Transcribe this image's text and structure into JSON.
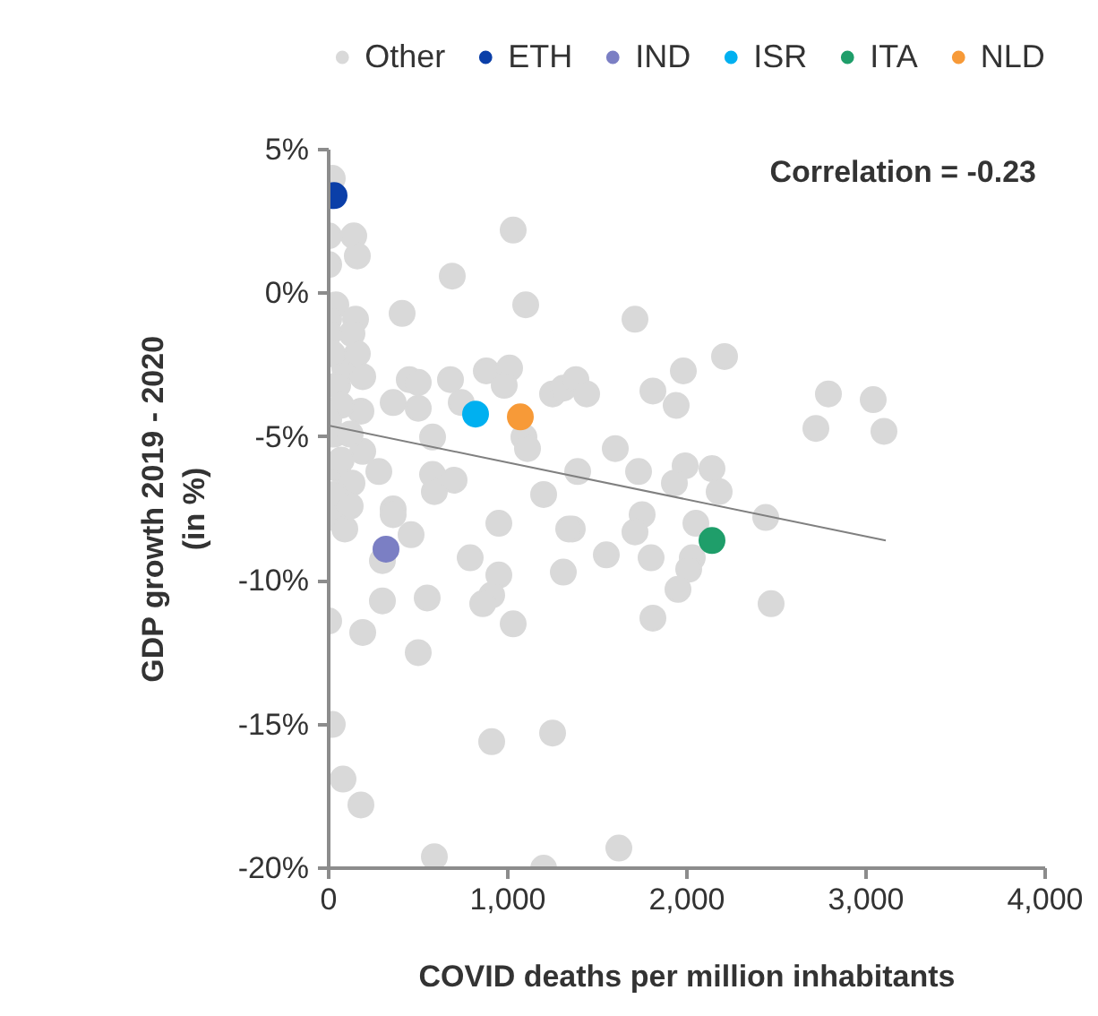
{
  "chart_data": {
    "type": "scatter",
    "xlabel": "COVID deaths per million inhabitants",
    "ylabel": "GDP growth 2019 - 2020\n(in %)",
    "annotations": [
      "Correlation = -0.23"
    ],
    "xlim": [
      0,
      4000
    ],
    "ylim": [
      -20,
      5
    ],
    "xticks": [
      0,
      {
        "value": 1000,
        "label": "1,000"
      },
      {
        "value": 2000,
        "label": "2,000"
      },
      {
        "value": 3000,
        "label": "3,000"
      },
      {
        "value": 4000,
        "label": "4,000"
      }
    ],
    "yticks": [
      {
        "value": -20,
        "label": "-20%"
      },
      {
        "value": -15,
        "label": "-15%"
      },
      {
        "value": -10,
        "label": "-10%"
      },
      {
        "value": -5,
        "label": "-5%"
      },
      {
        "value": 0,
        "label": "0%"
      },
      {
        "value": 5,
        "label": "5%"
      }
    ],
    "grid": false,
    "legend": "top",
    "marker": "circle",
    "series": [
      {
        "name": "Other",
        "color": "#d9d9d9",
        "x": [
          20,
          140,
          160,
          0,
          0,
          690,
          1030,
          40,
          0,
          150,
          410,
          1100,
          1710,
          130,
          90,
          190,
          450,
          500,
          680,
          880,
          1010,
          980,
          360,
          500,
          740,
          180,
          1090,
          1110,
          580,
          190,
          50,
          130,
          280,
          580,
          590,
          700,
          1200,
          360,
          950,
          0,
          90,
          360,
          460,
          300,
          790,
          950,
          910,
          860,
          300,
          550,
          0,
          190,
          500,
          1030,
          20,
          910,
          1250,
          80,
          180,
          590,
          1200,
          1620,
          1310,
          1550,
          1800,
          2030,
          2010,
          1950,
          2470,
          1810,
          2790,
          3040,
          2720,
          3100,
          1810,
          1940,
          1980,
          2210,
          1600,
          1390,
          1730,
          1990,
          2140,
          1930,
          2180,
          2440,
          1750,
          1710,
          2050,
          1360,
          1340,
          1250,
          1310,
          1380,
          1440,
          0,
          20,
          50,
          70,
          0,
          30,
          70,
          30,
          120,
          160,
          120
        ],
        "values": [
          4.0,
          2.0,
          1.3,
          2.0,
          1.0,
          0.6,
          2.2,
          -0.4,
          -0.9,
          -0.9,
          -0.7,
          -0.4,
          -0.9,
          -1.4,
          -2.6,
          -2.9,
          -3.0,
          -3.1,
          -3.0,
          -2.7,
          -2.6,
          -3.2,
          -3.8,
          -4.0,
          -3.8,
          -4.1,
          -5.0,
          -5.4,
          -5.0,
          -5.5,
          -6.1,
          -6.6,
          -6.2,
          -6.3,
          -6.9,
          -6.5,
          -7.0,
          -7.5,
          -8.0,
          -7.8,
          -8.2,
          -7.7,
          -8.4,
          -9.3,
          -9.2,
          -9.8,
          -10.5,
          -10.8,
          -10.7,
          -10.6,
          -11.4,
          -11.8,
          -12.5,
          -11.5,
          -15.0,
          -15.6,
          -15.3,
          -16.9,
          -17.8,
          -19.6,
          -20.0,
          -19.3,
          -9.7,
          -9.1,
          -9.2,
          -9.2,
          -9.6,
          -10.3,
          -10.8,
          -11.3,
          -3.5,
          -3.7,
          -4.7,
          -4.8,
          -3.4,
          -3.9,
          -2.7,
          -2.2,
          -5.4,
          -6.2,
          -6.2,
          -6.0,
          -6.1,
          -6.6,
          -6.9,
          -7.8,
          -7.7,
          -8.3,
          -8.0,
          -8.2,
          -8.2,
          -3.5,
          -3.3,
          -3.0,
          -3.5,
          -1.4,
          -2.1,
          -3.2,
          -3.9,
          -4.4,
          -4.9,
          -5.8,
          -7.0,
          -7.4,
          -2.1,
          -4.9
        ]
      },
      {
        "name": "ETH",
        "color": "#0b3fa8",
        "x": [
          30
        ],
        "values": [
          3.4
        ]
      },
      {
        "name": "IND",
        "color": "#7b7fc4",
        "x": [
          320
        ],
        "values": [
          -8.9
        ]
      },
      {
        "name": "ISR",
        "color": "#00b0f0",
        "x": [
          820
        ],
        "values": [
          -4.2
        ]
      },
      {
        "name": "ITA",
        "color": "#1f9e6a",
        "x": [
          2140
        ],
        "values": [
          -8.6
        ]
      },
      {
        "name": "NLD",
        "color": "#f79a38",
        "x": [
          1070
        ],
        "values": [
          -4.3
        ]
      },
      {
        "type": "line",
        "marker": "none",
        "color": "#808080",
        "x": [
          0,
          3110
        ],
        "values": [
          -4.6,
          -8.6
        ]
      }
    ]
  }
}
